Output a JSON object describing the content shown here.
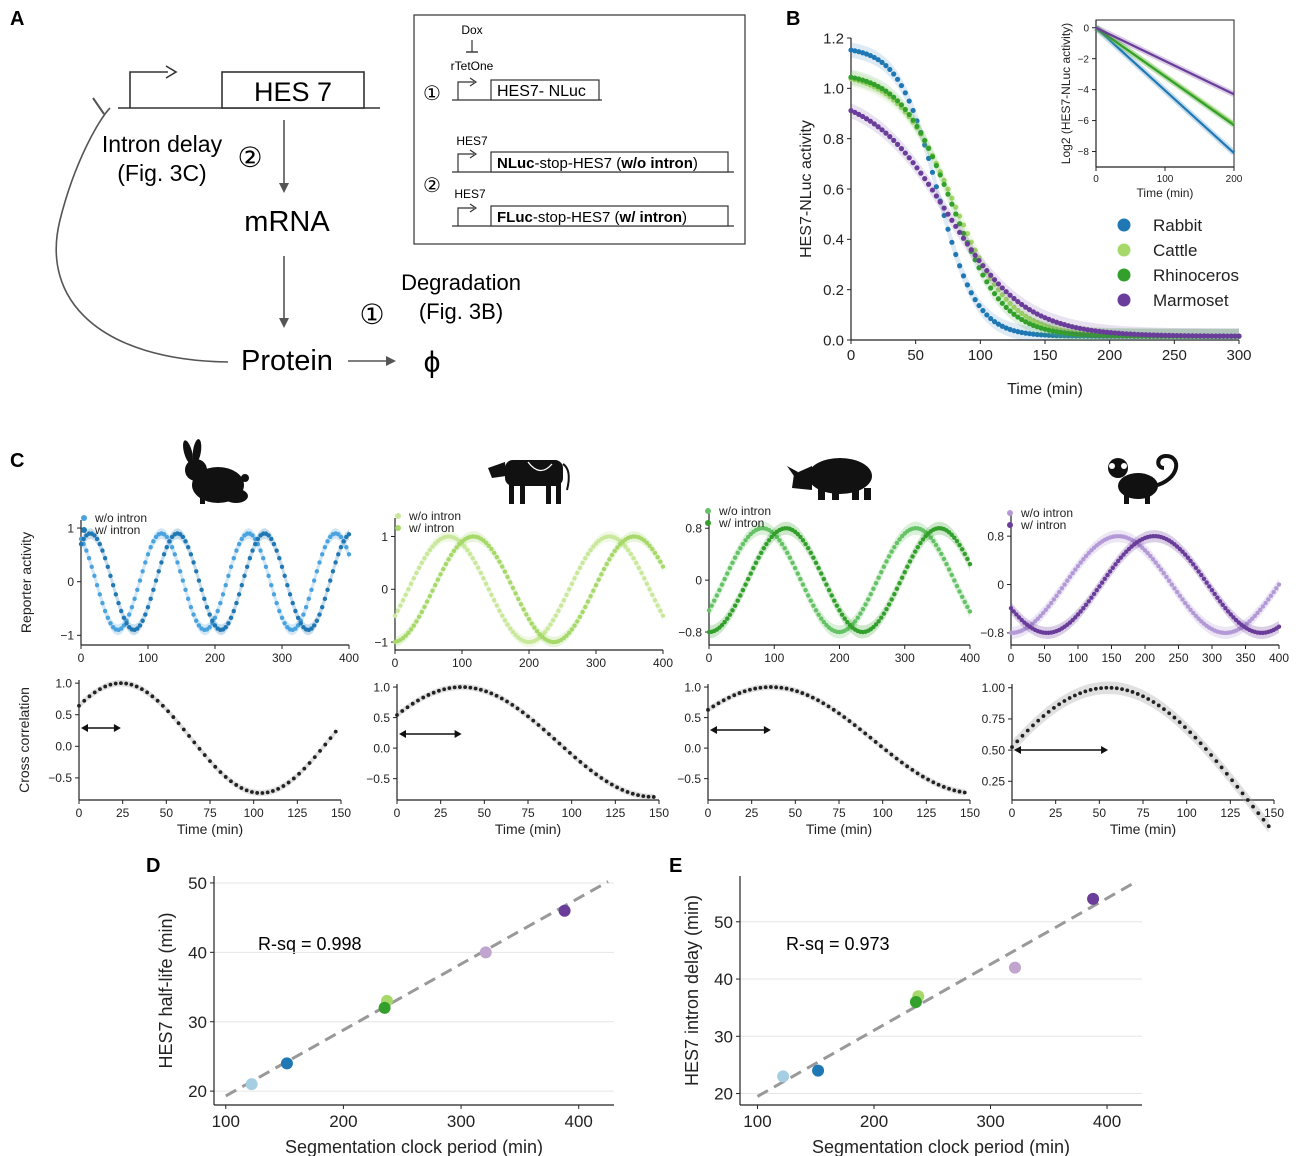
{
  "panels": {
    "A": {
      "label": "A",
      "gene": "HES 7",
      "intron_delay": [
        "Intron delay",
        "(Fig. 3C)"
      ],
      "circled_two": "②",
      "circled_one": "①",
      "mrna": "mRNA",
      "protein": "Protein",
      "degradation": [
        "Degradation",
        "(Fig. 3B)"
      ],
      "null_symbol": "ϕ",
      "box": {
        "dox": "Dox",
        "rtetone": "rTetOne",
        "construct1": "HES7- NLuc",
        "hes7_a": "HES7",
        "construct2_bold": "NLuc",
        "construct2_mid": "-stop-HES7 (",
        "construct2_bold2": "w/o intron",
        "construct2_end": ")",
        "hes7_b": "HES7",
        "construct3_bold": "FLuc",
        "construct3_mid": "-stop-HES7 (",
        "construct3_bold2": "w/ intron",
        "construct3_end": ")"
      }
    },
    "B": {
      "label": "B"
    },
    "C": {
      "label": "C"
    },
    "D": {
      "label": "D",
      "rsq": "R-sq = 0.998"
    },
    "E": {
      "label": "E",
      "rsq": "R-sq = 0.973"
    }
  },
  "species_colors": {
    "Rabbit": "#1f78b4",
    "Rabbit_light": "#4aa3df",
    "Cattle": "#a6d96a",
    "Cattle_light": "#c9e89c",
    "Rhinoceros": "#33a02c",
    "Rhinoceros_light": "#66c266",
    "Marmoset": "#6a3d9a",
    "Marmoset_light": "#b39ad6"
  },
  "chart_data": [
    {
      "id": "B-main",
      "type": "scatter",
      "xlabel": "Time (min)",
      "ylabel": "HES7-NLuc activity",
      "xlim": [
        0,
        300
      ],
      "ylim": [
        0,
        1.2
      ],
      "xticks": [
        0,
        50,
        100,
        150,
        200,
        250,
        300
      ],
      "yticks": [
        0.0,
        0.2,
        0.4,
        0.6,
        0.8,
        1.0,
        1.2
      ],
      "legend": [
        "Rabbit",
        "Cattle",
        "Rhinoceros",
        "Marmoset"
      ],
      "legend_placement": "right",
      "series": [
        {
          "name": "Rabbit",
          "start": 1.15,
          "half_time": 67,
          "steepness": 15
        },
        {
          "name": "Cattle",
          "start": 1.05,
          "half_time": 80,
          "steepness": 22
        },
        {
          "name": "Rhinoceros",
          "start": 1.05,
          "half_time": 78,
          "steepness": 20
        },
        {
          "name": "Marmoset",
          "start": 0.97,
          "half_time": 75,
          "steepness": 30
        }
      ]
    },
    {
      "id": "B-inset",
      "type": "line",
      "xlabel": "Time (min)",
      "ylabel": "Log2 (HES7-NLuc activity)",
      "xlim": [
        0,
        200
      ],
      "ylim": [
        -9,
        0.5
      ],
      "xticks": [
        0,
        100,
        200
      ],
      "yticks": [
        0,
        -2,
        -4,
        -6,
        -8
      ],
      "series": [
        {
          "name": "Rabbit",
          "slope": -0.0405
        },
        {
          "name": "Cattle",
          "slope": -0.031
        },
        {
          "name": "Rhinoceros",
          "slope": -0.0315
        },
        {
          "name": "Marmoset",
          "slope": -0.0215
        }
      ]
    },
    {
      "id": "C-rabbit",
      "type": "line",
      "ylabel": "Reporter activity",
      "xlim": [
        0,
        400
      ],
      "xticks": [
        0,
        100,
        200,
        300,
        400
      ],
      "yticks": [
        1,
        0,
        -1
      ],
      "legend": [
        "w/o intron",
        "w/ intron"
      ],
      "period": 130,
      "series": [
        {
          "name": "w/o intron",
          "phase_peak": 120,
          "amplitude": 0.9
        },
        {
          "name": "w/ intron",
          "phase_peak": 144,
          "amplitude": 0.9
        }
      ]
    },
    {
      "id": "C-cattle",
      "type": "line",
      "xlim": [
        0,
        400
      ],
      "xticks": [
        0,
        100,
        200,
        300,
        400
      ],
      "yticks": [
        1,
        0,
        -1
      ],
      "legend": [
        "w/o intron",
        "w/ intron"
      ],
      "period": 240,
      "series": [
        {
          "name": "w/o intron",
          "phase_peak": 80,
          "amplitude": 1.0
        },
        {
          "name": "w/ intron",
          "phase_peak": 117,
          "amplitude": 1.0
        }
      ]
    },
    {
      "id": "C-rhino",
      "type": "line",
      "xlim": [
        0,
        400
      ],
      "xticks": [
        0,
        100,
        200,
        300,
        400
      ],
      "yticks": [
        0.8,
        0.0,
        -0.8
      ],
      "legend": [
        "w/o intron",
        "w/ intron"
      ],
      "period": 235,
      "series": [
        {
          "name": "w/o intron",
          "phase_peak": 82,
          "amplitude": 0.8
        },
        {
          "name": "w/ intron",
          "phase_peak": 118,
          "amplitude": 0.8
        }
      ]
    },
    {
      "id": "C-marmoset",
      "type": "line",
      "xlim": [
        0,
        400
      ],
      "xticks": [
        0,
        50,
        100,
        150,
        200,
        250,
        300,
        350,
        400
      ],
      "yticks": [
        0.8,
        0.0,
        -0.8
      ],
      "legend": [
        "w/o intron",
        "w/ intron"
      ],
      "period": 320,
      "series": [
        {
          "name": "w/o intron",
          "phase_peak": 160,
          "amplitude": 0.8
        },
        {
          "name": "w/ intron",
          "phase_peak": 214,
          "amplitude": 0.8
        }
      ]
    },
    {
      "id": "C-xcorr-rabbit",
      "type": "scatter",
      "ylabel": "Cross correlation",
      "xlabel": "Time (min)",
      "xlim": [
        0,
        150
      ],
      "xticks": [
        0,
        25,
        50,
        75,
        100,
        125,
        150
      ],
      "yticks": [
        1.0,
        0.5,
        0.0,
        -0.5
      ],
      "ylim": [
        -0.85,
        1.05
      ],
      "peak_lag": 24,
      "period": 160,
      "amp": 0.87,
      "offset": 0.13
    },
    {
      "id": "C-xcorr-cattle",
      "type": "scatter",
      "xlabel": "Time (min)",
      "xlim": [
        0,
        150
      ],
      "xticks": [
        0,
        25,
        50,
        75,
        100,
        125,
        150
      ],
      "yticks": [
        1.0,
        0.5,
        0.0,
        -0.5
      ],
      "ylim": [
        -0.85,
        1.05
      ],
      "peak_lag": 37,
      "period": 220,
      "amp": 0.9,
      "offset": 0.1
    },
    {
      "id": "C-xcorr-rhino",
      "type": "scatter",
      "xlabel": "Time (min)",
      "xlim": [
        0,
        150
      ],
      "xticks": [
        0,
        25,
        50,
        75,
        100,
        125,
        150
      ],
      "yticks": [
        1.0,
        0.5,
        0.0,
        -0.5
      ],
      "ylim": [
        -0.85,
        1.05
      ],
      "peak_lag": 36,
      "period": 235,
      "amp": 0.87,
      "offset": 0.13
    },
    {
      "id": "C-xcorr-marmoset",
      "type": "scatter",
      "xlabel": "Time (min)",
      "xlim": [
        0,
        150
      ],
      "xticks": [
        0,
        25,
        50,
        75,
        100,
        125,
        150
      ],
      "yticks": [
        1.0,
        0.75,
        0.5,
        0.25
      ],
      "ylim": [
        0.1,
        1.03
      ],
      "peak_lag": 55,
      "period": 320,
      "amp": 0.9,
      "offset": 0.1
    },
    {
      "id": "D",
      "type": "scatter",
      "xlabel": "Segmentation clock period (min)",
      "ylabel": "HES7 half-life (min)",
      "xlim": [
        90,
        430
      ],
      "ylim": [
        18,
        51
      ],
      "xticks": [
        100,
        200,
        300,
        400
      ],
      "yticks": [
        20,
        30,
        40,
        50
      ],
      "fit": {
        "x": [
          100,
          425
        ],
        "y": [
          19.3,
          50.2
        ]
      },
      "points": [
        {
          "x": 122,
          "y": 21,
          "color": "#a6cee3"
        },
        {
          "x": 152,
          "y": 24,
          "color": "#1f78b4"
        },
        {
          "x": 237,
          "y": 33,
          "color": "#a6d96a"
        },
        {
          "x": 235,
          "y": 32,
          "color": "#33a02c"
        },
        {
          "x": 321,
          "y": 40,
          "color": "#c2a5cf"
        },
        {
          "x": 388,
          "y": 46,
          "color": "#6a3d9a"
        }
      ]
    },
    {
      "id": "E",
      "type": "scatter",
      "xlabel": "Segmentation clock period (min)",
      "ylabel": "HES7 intron delay (min)",
      "xlim": [
        85,
        430
      ],
      "ylim": [
        18,
        58
      ],
      "xticks": [
        100,
        200,
        300,
        400
      ],
      "yticks": [
        20,
        30,
        40,
        50
      ],
      "fit": {
        "x": [
          100,
          425
        ],
        "y": [
          19.5,
          57
        ]
      },
      "points": [
        {
          "x": 122,
          "y": 23,
          "color": "#a6cee3"
        },
        {
          "x": 152,
          "y": 24,
          "color": "#1f78b4"
        },
        {
          "x": 238,
          "y": 37,
          "color": "#a6d96a"
        },
        {
          "x": 236,
          "y": 36,
          "color": "#33a02c"
        },
        {
          "x": 321,
          "y": 42,
          "color": "#c2a5cf"
        },
        {
          "x": 388,
          "y": 54,
          "color": "#6a3d9a"
        }
      ]
    }
  ]
}
